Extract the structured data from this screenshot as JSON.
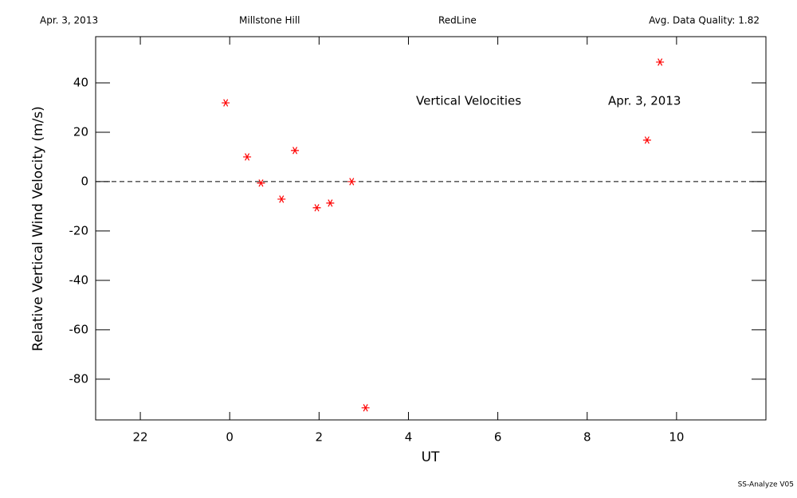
{
  "chart_data": {
    "type": "scatter",
    "header": [
      "Apr. 3, 2013",
      "Millstone Hill",
      "RedLine",
      "Avg. Data Quality: 1.82"
    ],
    "annotations": [
      "Vertical Velocities",
      "Apr. 3, 2013"
    ],
    "footer": "SS-Analyze V05",
    "x_label": "UT",
    "y_label": "Relative Vertical Wind Velocity (m/s)",
    "xlim": [
      -3,
      12
    ],
    "xticks": [
      {
        "value": -2,
        "label": "22"
      },
      0,
      2,
      4,
      6,
      8,
      10
    ],
    "ylim": [
      -96.5,
      58.7
    ],
    "yticks": [
      -80,
      -60,
      -40,
      -20,
      0,
      20,
      40
    ],
    "reference_line": 0,
    "series": [
      {
        "color": "#ff0000",
        "x": [
          -0.09,
          0.39,
          0.7,
          1.16,
          1.46,
          1.95,
          2.25,
          2.73,
          3.04,
          9.34,
          9.63
        ],
        "values": [
          31.9,
          10.0,
          -0.6,
          -7.1,
          12.6,
          -10.6,
          -8.7,
          0,
          -91.6,
          16.8,
          48.4
        ]
      }
    ]
  }
}
